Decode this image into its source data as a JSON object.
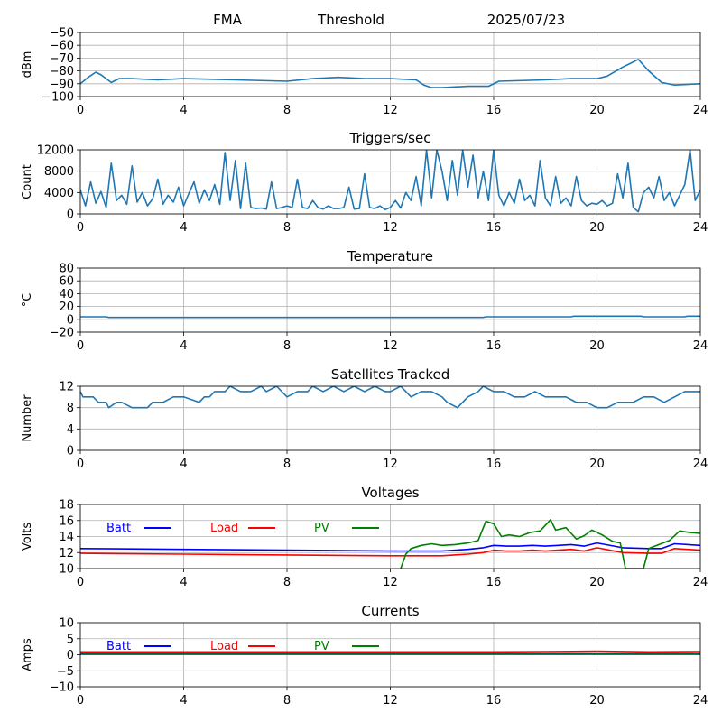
{
  "header": {
    "site": "FMA",
    "mode": "Threshold",
    "date": "2025/07/23"
  },
  "chart_data": [
    {
      "id": "threshold",
      "type": "line",
      "title": "",
      "ylabel": "dBm",
      "xlim": [
        0,
        24
      ],
      "ylim": [
        -100,
        -50
      ],
      "xticks": [
        0,
        4,
        8,
        12,
        16,
        20,
        24
      ],
      "yticks": [
        -100,
        -90,
        -80,
        -70,
        -60,
        -50
      ],
      "grid": true,
      "series": [
        {
          "color": "#1f77b4",
          "x": [
            0,
            0.3,
            0.6,
            0.8,
            1.0,
            1.2,
            1.5,
            2.0,
            3.0,
            4.0,
            6.0,
            8.0,
            9.0,
            10.0,
            11.0,
            12.0,
            13.0,
            13.3,
            13.6,
            14.0,
            15.0,
            15.8,
            16.2,
            18.0,
            19.0,
            20.0,
            20.4,
            21.0,
            21.3,
            21.6,
            22.0,
            22.5,
            23.0,
            24.0
          ],
          "y": [
            -90,
            -85,
            -81,
            -83,
            -86,
            -89,
            -86,
            -86,
            -87,
            -86,
            -87,
            -88,
            -86,
            -85,
            -86,
            -86,
            -87,
            -91,
            -93,
            -93,
            -92,
            -92,
            -88,
            -87,
            -86,
            -86,
            -84,
            -77,
            -74,
            -71,
            -80,
            -89,
            -91,
            -90
          ]
        }
      ]
    },
    {
      "id": "triggers",
      "type": "line",
      "title": "Triggers/sec",
      "ylabel": "Count",
      "xlim": [
        0,
        24
      ],
      "ylim": [
        0,
        12000
      ],
      "xticks": [
        0,
        4,
        8,
        12,
        16,
        20,
        24
      ],
      "yticks": [
        0,
        4000,
        8000,
        12000
      ],
      "grid": true,
      "series": [
        {
          "color": "#1f77b4",
          "x": [
            0,
            0.2,
            0.4,
            0.6,
            0.8,
            1.0,
            1.2,
            1.4,
            1.6,
            1.8,
            2.0,
            2.2,
            2.4,
            2.6,
            2.8,
            3.0,
            3.2,
            3.4,
            3.6,
            3.8,
            4.0,
            4.2,
            4.4,
            4.6,
            4.8,
            5.0,
            5.2,
            5.4,
            5.6,
            5.8,
            6.0,
            6.2,
            6.4,
            6.6,
            6.8,
            7.0,
            7.2,
            7.4,
            7.6,
            7.8,
            8.0,
            8.2,
            8.4,
            8.6,
            8.8,
            9.0,
            9.2,
            9.4,
            9.6,
            9.8,
            10.0,
            10.2,
            10.4,
            10.6,
            10.8,
            11.0,
            11.2,
            11.4,
            11.6,
            11.8,
            12.0,
            12.2,
            12.4,
            12.6,
            12.8,
            13.0,
            13.2,
            13.4,
            13.6,
            13.8,
            14.0,
            14.2,
            14.4,
            14.6,
            14.8,
            15.0,
            15.2,
            15.4,
            15.6,
            15.8,
            16.0,
            16.2,
            16.4,
            16.6,
            16.8,
            17.0,
            17.2,
            17.4,
            17.6,
            17.8,
            18.0,
            18.2,
            18.4,
            18.6,
            18.8,
            19.0,
            19.2,
            19.4,
            19.6,
            19.8,
            20.0,
            20.2,
            20.4,
            20.6,
            20.8,
            21.0,
            21.2,
            21.4,
            21.6,
            21.8,
            22.0,
            22.2,
            22.4,
            22.6,
            22.8,
            23.0,
            23.2,
            23.4,
            23.6,
            23.8,
            24.0
          ],
          "y": [
            4500,
            1500,
            6000,
            2000,
            4200,
            1200,
            9500,
            2500,
            3500,
            1800,
            9000,
            2200,
            4000,
            1500,
            2800,
            6500,
            1800,
            3500,
            2200,
            5000,
            1500,
            3800,
            6000,
            2000,
            4500,
            2500,
            5500,
            1800,
            11500,
            2500,
            10000,
            1000,
            9500,
            1200,
            1000,
            1100,
            900,
            6000,
            1000,
            1200,
            1500,
            1200,
            6500,
            1200,
            1000,
            2500,
            1200,
            900,
            1500,
            1000,
            1000,
            1200,
            5000,
            900,
            1000,
            7500,
            1200,
            1000,
            1500,
            800,
            1200,
            2500,
            1100,
            4000,
            2500,
            7000,
            1500,
            12000,
            3000,
            12000,
            8000,
            2500,
            10000,
            3500,
            12000,
            5000,
            11000,
            3000,
            8000,
            2500,
            12000,
            3500,
            1500,
            4000,
            2000,
            6500,
            2500,
            3500,
            1500,
            10000,
            3000,
            1500,
            7000,
            2000,
            3000,
            1500,
            7000,
            2500,
            1500,
            2000,
            1800,
            2500,
            1500,
            2000,
            7500,
            3000,
            9500,
            1200,
            400,
            4000,
            5000,
            3000,
            7000,
            2500,
            4000,
            1500,
            3500,
            5500,
            12000,
            2500,
            4500
          ]
        }
      ]
    },
    {
      "id": "temperature",
      "type": "line",
      "title": "Temperature",
      "ylabel": "°C",
      "xlim": [
        0,
        24
      ],
      "ylim": [
        -20,
        80
      ],
      "xticks": [
        0,
        4,
        8,
        12,
        16,
        20,
        24
      ],
      "yticks": [
        -20,
        0,
        20,
        40,
        60,
        80
      ],
      "grid": true,
      "series": [
        {
          "color": "#1f77b4",
          "x": [
            0,
            1.0,
            1.1,
            15.6,
            15.7,
            19.0,
            19.1,
            21.7,
            21.8,
            23.4,
            23.5,
            24.0
          ],
          "y": [
            4,
            4,
            3,
            3,
            4,
            4,
            5,
            5,
            4,
            4,
            5,
            5
          ]
        }
      ]
    },
    {
      "id": "satellites",
      "type": "line",
      "title": "Satellites Tracked",
      "ylabel": "Number",
      "xlim": [
        0,
        24
      ],
      "ylim": [
        0,
        12
      ],
      "xticks": [
        0,
        4,
        8,
        12,
        16,
        20,
        24
      ],
      "yticks": [
        0,
        4,
        8,
        12
      ],
      "grid": true,
      "series": [
        {
          "color": "#1f77b4",
          "x": [
            0,
            0.1,
            0.5,
            0.7,
            1.0,
            1.1,
            1.4,
            1.6,
            2.0,
            2.2,
            2.6,
            2.8,
            3.2,
            3.6,
            3.8,
            4.0,
            4.6,
            4.8,
            5.0,
            5.2,
            5.6,
            5.8,
            6.2,
            6.6,
            7.0,
            7.2,
            7.6,
            8.0,
            8.4,
            8.8,
            9.0,
            9.4,
            9.8,
            10.2,
            10.6,
            11.0,
            11.4,
            11.8,
            12.0,
            12.4,
            12.8,
            13.2,
            13.6,
            14.0,
            14.2,
            14.6,
            15.0,
            15.4,
            15.6,
            16.0,
            16.4,
            16.8,
            17.2,
            17.6,
            18.0,
            18.4,
            18.8,
            19.2,
            19.6,
            20.0,
            20.4,
            20.8,
            21.0,
            21.4,
            21.8,
            22.2,
            22.6,
            23.0,
            23.4,
            23.8,
            24.0
          ],
          "y": [
            11,
            10,
            10,
            9,
            9,
            8,
            9,
            9,
            8,
            8,
            8,
            9,
            9,
            10,
            10,
            10,
            9,
            10,
            10,
            11,
            11,
            12,
            11,
            11,
            12,
            11,
            12,
            10,
            11,
            11,
            12,
            11,
            12,
            11,
            12,
            11,
            12,
            11,
            11,
            12,
            10,
            11,
            11,
            10,
            9,
            8,
            10,
            11,
            12,
            11,
            11,
            10,
            10,
            11,
            10,
            10,
            10,
            9,
            9,
            8,
            8,
            9,
            9,
            9,
            10,
            10,
            9,
            10,
            11,
            11,
            11
          ]
        }
      ]
    },
    {
      "id": "voltages",
      "type": "line",
      "title": "Voltages",
      "ylabel": "Volts",
      "xlim": [
        0,
        24
      ],
      "ylim": [
        10,
        18
      ],
      "xticks": [
        0,
        4,
        8,
        12,
        16,
        20,
        24
      ],
      "yticks": [
        10,
        12,
        14,
        16,
        18
      ],
      "grid": true,
      "legend_position": "top-left",
      "series": [
        {
          "name": "Batt",
          "color": "#0000ff",
          "x": [
            0,
            4,
            8,
            12,
            14,
            15,
            15.6,
            16,
            16.5,
            17,
            17.5,
            18,
            18.5,
            19,
            19.5,
            20,
            21,
            22,
            22.5,
            23,
            24
          ],
          "y": [
            12.5,
            12.4,
            12.3,
            12.2,
            12.2,
            12.4,
            12.6,
            12.9,
            12.8,
            12.8,
            12.9,
            12.8,
            12.9,
            13.0,
            12.8,
            13.2,
            12.6,
            12.5,
            12.5,
            13.1,
            12.9
          ]
        },
        {
          "name": "Load",
          "color": "#ff0000",
          "x": [
            0,
            4,
            8,
            12,
            14,
            15,
            15.6,
            16,
            16.5,
            17,
            17.5,
            18,
            18.5,
            19,
            19.5,
            20,
            21,
            22,
            22.5,
            23,
            24
          ],
          "y": [
            11.9,
            11.8,
            11.7,
            11.6,
            11.6,
            11.8,
            12.0,
            12.3,
            12.2,
            12.2,
            12.3,
            12.2,
            12.3,
            12.4,
            12.2,
            12.6,
            12.0,
            11.9,
            11.9,
            12.5,
            12.3
          ]
        },
        {
          "name": "PV",
          "color": "#008000",
          "x": [
            12.4,
            12.6,
            12.8,
            13.2,
            13.6,
            14.0,
            14.5,
            15.0,
            15.4,
            15.7,
            16.0,
            16.3,
            16.6,
            17.0,
            17.4,
            17.8,
            18.2,
            18.4,
            18.8,
            19.2,
            19.5,
            19.8,
            20.2,
            20.6,
            20.9,
            21.1,
            21.6,
            21.8,
            22.0,
            22.4,
            22.8,
            23.2,
            23.6,
            24.0
          ],
          "y": [
            10.0,
            11.8,
            12.5,
            12.9,
            13.1,
            12.9,
            13.0,
            13.2,
            13.5,
            15.9,
            15.6,
            14.0,
            14.2,
            14.0,
            14.5,
            14.7,
            16.1,
            14.8,
            15.1,
            13.7,
            14.1,
            14.8,
            14.2,
            13.4,
            13.2,
            10.0,
            10.0,
            10.0,
            12.5,
            13.0,
            13.5,
            14.7,
            14.5,
            14.4
          ]
        }
      ]
    },
    {
      "id": "currents",
      "type": "line",
      "title": "Currents",
      "ylabel": "Amps",
      "xlim": [
        0,
        24
      ],
      "ylim": [
        -10,
        10
      ],
      "xticks": [
        0,
        4,
        8,
        12,
        16,
        20,
        24
      ],
      "yticks": [
        -10,
        -5,
        0,
        5,
        10
      ],
      "grid": true,
      "legend_position": "top-left",
      "series": [
        {
          "name": "Batt",
          "color": "#0000ff",
          "x": [
            0,
            24
          ],
          "y": [
            0.3,
            0.3
          ]
        },
        {
          "name": "Load",
          "color": "#ff0000",
          "x": [
            0,
            4,
            8,
            12,
            16,
            18,
            20,
            22,
            24
          ],
          "y": [
            0.9,
            0.9,
            0.9,
            0.9,
            0.9,
            1.0,
            1.1,
            0.9,
            1.0
          ]
        },
        {
          "name": "PV",
          "color": "#008000",
          "x": [
            0,
            24
          ],
          "y": [
            0.1,
            0.1
          ]
        }
      ]
    }
  ]
}
